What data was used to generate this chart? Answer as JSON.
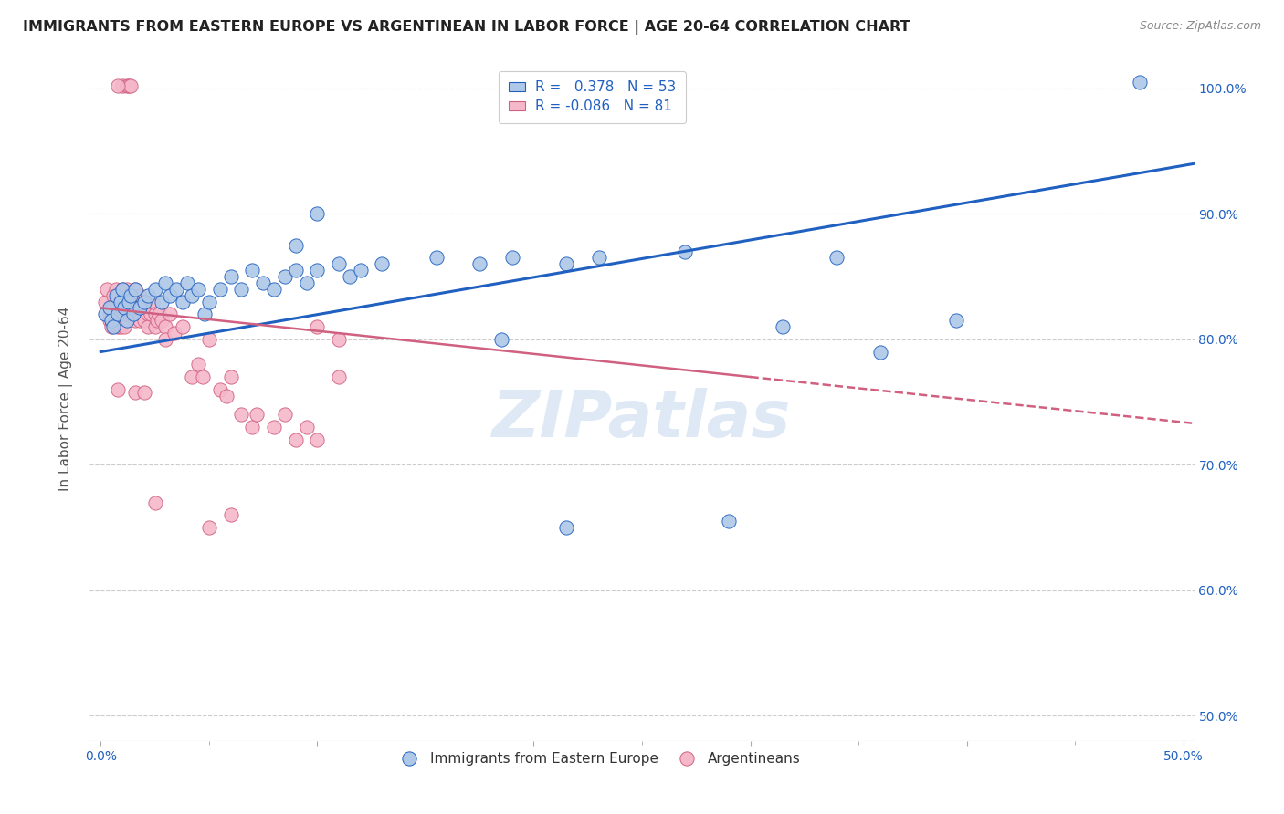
{
  "title": "IMMIGRANTS FROM EASTERN EUROPE VS ARGENTINEAN IN LABOR FORCE | AGE 20-64 CORRELATION CHART",
  "source": "Source: ZipAtlas.com",
  "ylabel": "In Labor Force | Age 20-64",
  "xlim": [
    -0.005,
    0.505
  ],
  "ylim": [
    0.48,
    1.025
  ],
  "xtick_vals": [
    0.0,
    0.1,
    0.2,
    0.3,
    0.4,
    0.5
  ],
  "xtick_labels": [
    "0.0%",
    "",
    "",
    "",
    "",
    "50.0%"
  ],
  "ytick_vals": [
    0.5,
    0.6,
    0.7,
    0.8,
    0.9,
    1.0
  ],
  "ytick_labels": [
    "50.0%",
    "60.0%",
    "70.0%",
    "80.0%",
    "90.0%",
    "100.0%"
  ],
  "watermark": "ZIPatlas",
  "blue_color": "#aec8e8",
  "pink_color": "#f5b8ca",
  "trendline_blue": "#2060c0",
  "trendline_pink": "#d06080",
  "blue_scatter": [
    [
      0.002,
      0.82
    ],
    [
      0.004,
      0.825
    ],
    [
      0.005,
      0.815
    ],
    [
      0.006,
      0.81
    ],
    [
      0.007,
      0.835
    ],
    [
      0.008,
      0.82
    ],
    [
      0.009,
      0.83
    ],
    [
      0.01,
      0.84
    ],
    [
      0.011,
      0.825
    ],
    [
      0.012,
      0.815
    ],
    [
      0.013,
      0.83
    ],
    [
      0.014,
      0.835
    ],
    [
      0.015,
      0.82
    ],
    [
      0.016,
      0.84
    ],
    [
      0.018,
      0.825
    ],
    [
      0.02,
      0.83
    ],
    [
      0.022,
      0.835
    ],
    [
      0.025,
      0.84
    ],
    [
      0.028,
      0.83
    ],
    [
      0.03,
      0.845
    ],
    [
      0.032,
      0.835
    ],
    [
      0.035,
      0.84
    ],
    [
      0.038,
      0.83
    ],
    [
      0.04,
      0.845
    ],
    [
      0.042,
      0.835
    ],
    [
      0.045,
      0.84
    ],
    [
      0.048,
      0.82
    ],
    [
      0.05,
      0.83
    ],
    [
      0.055,
      0.84
    ],
    [
      0.06,
      0.85
    ],
    [
      0.065,
      0.84
    ],
    [
      0.07,
      0.855
    ],
    [
      0.075,
      0.845
    ],
    [
      0.08,
      0.84
    ],
    [
      0.085,
      0.85
    ],
    [
      0.09,
      0.855
    ],
    [
      0.095,
      0.845
    ],
    [
      0.1,
      0.855
    ],
    [
      0.11,
      0.86
    ],
    [
      0.115,
      0.85
    ],
    [
      0.12,
      0.855
    ],
    [
      0.13,
      0.86
    ],
    [
      0.155,
      0.865
    ],
    [
      0.175,
      0.86
    ],
    [
      0.19,
      0.865
    ],
    [
      0.215,
      0.86
    ],
    [
      0.23,
      0.865
    ],
    [
      0.27,
      0.87
    ],
    [
      0.315,
      0.81
    ],
    [
      0.34,
      0.865
    ],
    [
      0.395,
      0.815
    ],
    [
      0.48,
      1.005
    ],
    [
      0.185,
      0.8
    ],
    [
      0.36,
      0.79
    ],
    [
      0.1,
      0.9
    ],
    [
      0.09,
      0.875
    ],
    [
      0.215,
      0.65
    ],
    [
      0.29,
      0.655
    ]
  ],
  "pink_scatter": [
    [
      0.002,
      0.83
    ],
    [
      0.003,
      0.84
    ],
    [
      0.004,
      0.82
    ],
    [
      0.004,
      0.815
    ],
    [
      0.005,
      0.825
    ],
    [
      0.005,
      0.81
    ],
    [
      0.006,
      0.835
    ],
    [
      0.006,
      0.825
    ],
    [
      0.007,
      0.84
    ],
    [
      0.007,
      0.83
    ],
    [
      0.007,
      0.82
    ],
    [
      0.008,
      0.835
    ],
    [
      0.008,
      0.825
    ],
    [
      0.008,
      0.81
    ],
    [
      0.009,
      0.83
    ],
    [
      0.009,
      0.82
    ],
    [
      0.009,
      0.81
    ],
    [
      0.01,
      0.84
    ],
    [
      0.01,
      0.825
    ],
    [
      0.011,
      0.835
    ],
    [
      0.011,
      0.82
    ],
    [
      0.011,
      0.81
    ],
    [
      0.012,
      0.84
    ],
    [
      0.012,
      0.82
    ],
    [
      0.013,
      0.835
    ],
    [
      0.014,
      0.82
    ],
    [
      0.015,
      0.83
    ],
    [
      0.015,
      0.82
    ],
    [
      0.016,
      0.84
    ],
    [
      0.016,
      0.815
    ],
    [
      0.017,
      0.825
    ],
    [
      0.018,
      0.835
    ],
    [
      0.018,
      0.815
    ],
    [
      0.019,
      0.825
    ],
    [
      0.02,
      0.83
    ],
    [
      0.02,
      0.815
    ],
    [
      0.021,
      0.83
    ],
    [
      0.022,
      0.82
    ],
    [
      0.022,
      0.81
    ],
    [
      0.023,
      0.82
    ],
    [
      0.024,
      0.83
    ],
    [
      0.025,
      0.82
    ],
    [
      0.025,
      0.81
    ],
    [
      0.026,
      0.815
    ],
    [
      0.027,
      0.82
    ],
    [
      0.028,
      0.815
    ],
    [
      0.03,
      0.81
    ],
    [
      0.03,
      0.8
    ],
    [
      0.032,
      0.82
    ],
    [
      0.034,
      0.805
    ],
    [
      0.038,
      0.81
    ],
    [
      0.042,
      0.77
    ],
    [
      0.045,
      0.78
    ],
    [
      0.047,
      0.77
    ],
    [
      0.05,
      0.8
    ],
    [
      0.055,
      0.76
    ],
    [
      0.058,
      0.755
    ],
    [
      0.06,
      0.77
    ],
    [
      0.065,
      0.74
    ],
    [
      0.07,
      0.73
    ],
    [
      0.072,
      0.74
    ],
    [
      0.08,
      0.73
    ],
    [
      0.085,
      0.74
    ],
    [
      0.09,
      0.72
    ],
    [
      0.095,
      0.73
    ],
    [
      0.1,
      0.81
    ],
    [
      0.1,
      0.72
    ],
    [
      0.11,
      0.8
    ],
    [
      0.11,
      0.77
    ],
    [
      0.01,
      1.002
    ],
    [
      0.012,
      1.002
    ],
    [
      0.013,
      1.002
    ],
    [
      0.014,
      1.002
    ],
    [
      0.008,
      1.002
    ],
    [
      0.008,
      0.76
    ],
    [
      0.016,
      0.758
    ],
    [
      0.02,
      0.758
    ],
    [
      0.05,
      0.65
    ],
    [
      0.06,
      0.66
    ],
    [
      0.025,
      0.67
    ]
  ],
  "blue_trend_x": [
    0.0,
    0.505
  ],
  "blue_trend_y": [
    0.79,
    0.94
  ],
  "pink_trend_x": [
    0.0,
    0.3
  ],
  "pink_trend_y": [
    0.825,
    0.77
  ]
}
